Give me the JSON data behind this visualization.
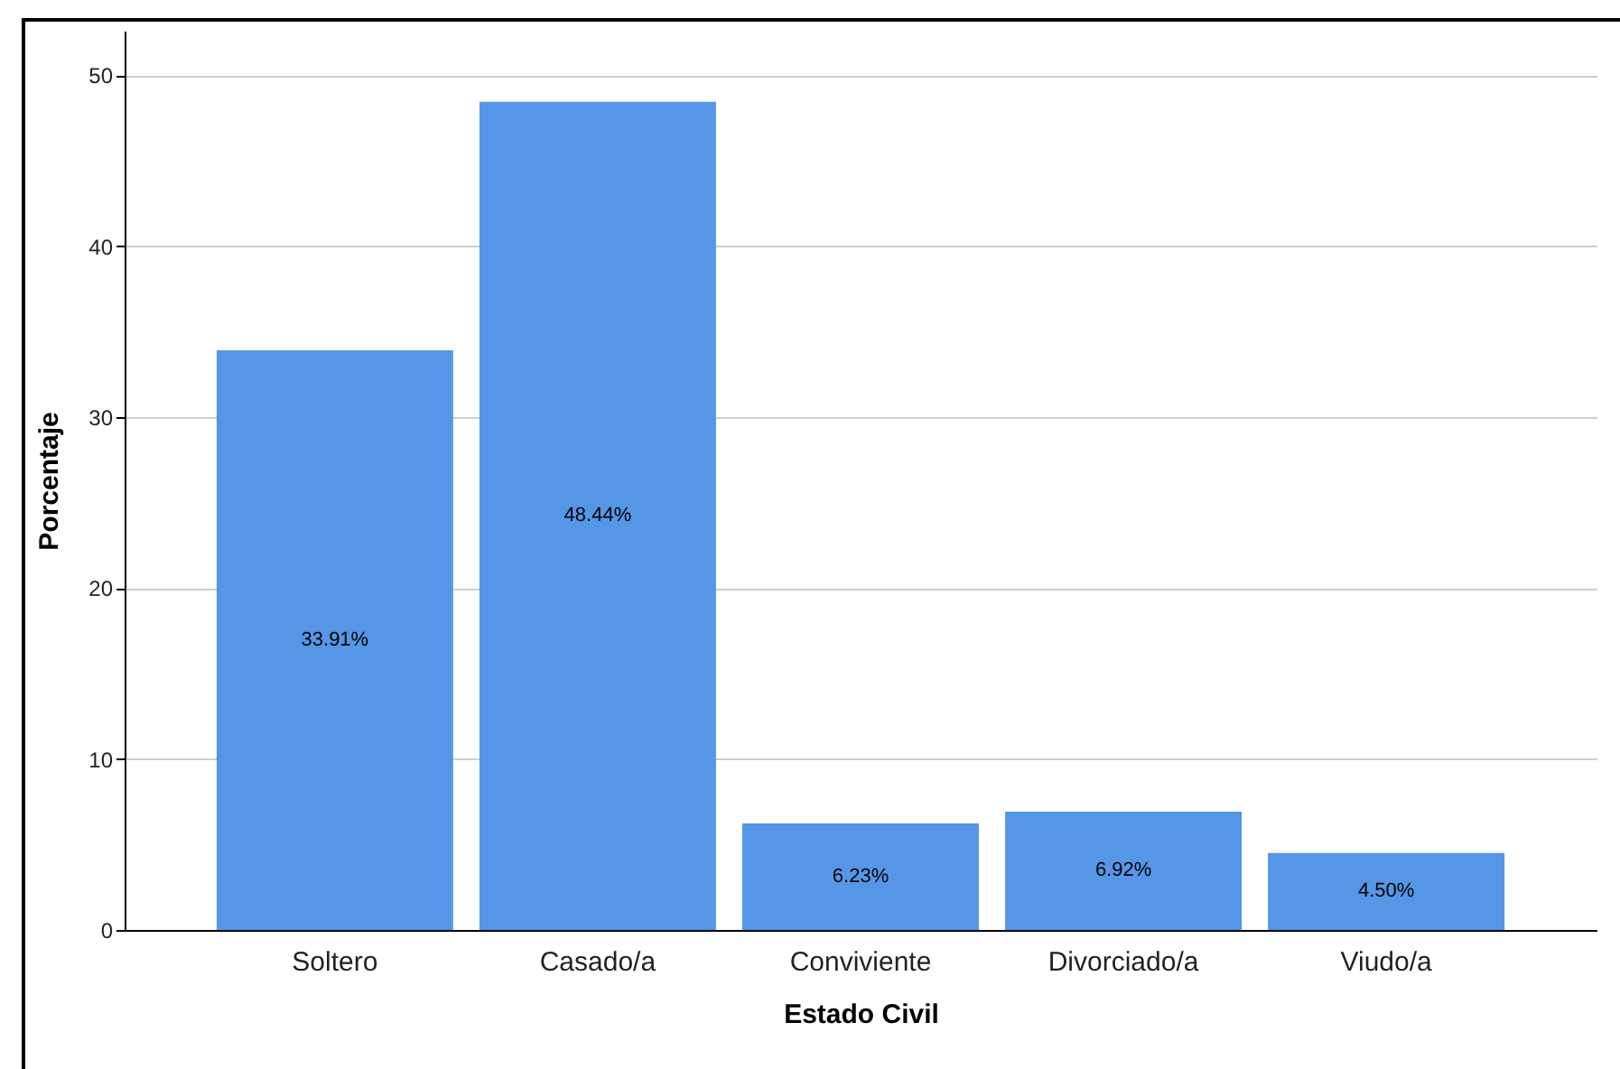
{
  "chart_data": {
    "type": "bar",
    "xlabel": "Estado Civil",
    "ylabel": "Porcentaje",
    "categories": [
      "Soltero",
      "Casado/a",
      "Conviviente",
      "Divorciado/a",
      "Viudo/a"
    ],
    "values": [
      33.91,
      48.44,
      6.23,
      6.92,
      4.5
    ],
    "value_labels": [
      "33.91%",
      "48.44%",
      "6.23%",
      "6.92%",
      "4.50%"
    ],
    "color": "#5596e6",
    "ylim": [
      0,
      52.6
    ],
    "yticks": [
      0,
      10,
      20,
      30,
      40,
      50
    ],
    "grid": "y"
  }
}
